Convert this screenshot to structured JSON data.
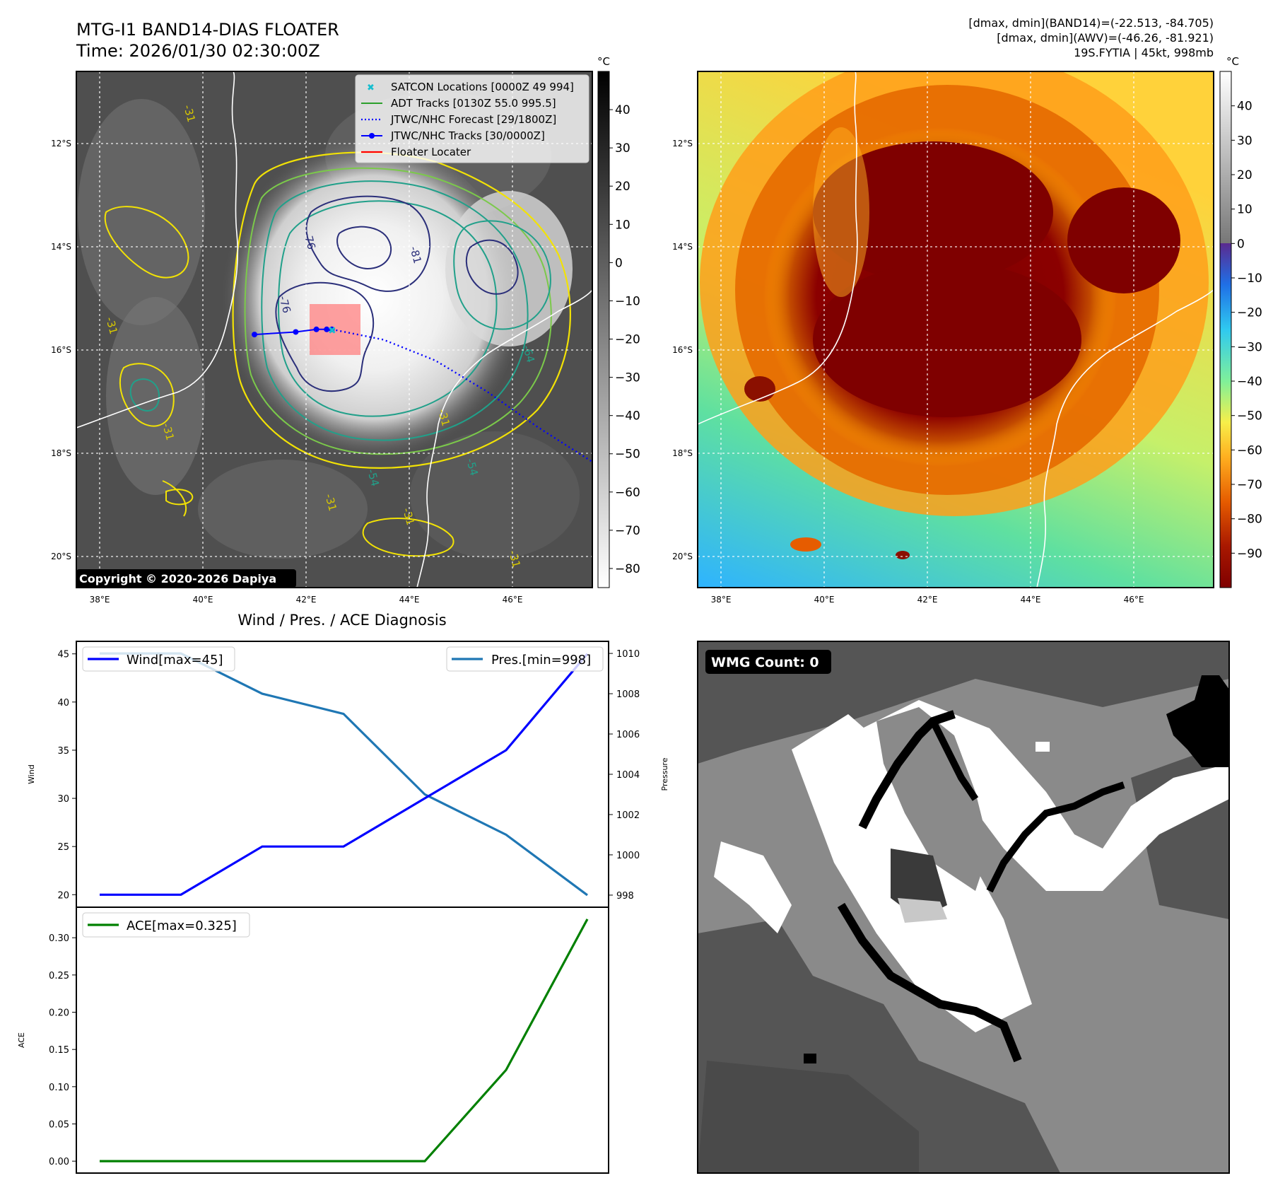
{
  "header": {
    "title_line1": "MTG-I1 BAND14-DIAS FLOATER",
    "title_line2": "Time: 2026/01/30 02:30:00Z",
    "right_line1": "[dmax, dmin](BAND14)=(-22.513, -84.705)",
    "right_line2": "[dmax, dmin](AWV)=(-46.26, -81.921)",
    "right_line3": "19S.FYTIA | 45kt, 998mb"
  },
  "map": {
    "lon_labels": [
      "38°E",
      "40°E",
      "42°E",
      "44°E",
      "46°E"
    ],
    "lat_labels": [
      "12°S",
      "14°S",
      "16°S",
      "18°S",
      "20°S"
    ],
    "copyright": "Copyright © 2020-2026 Dapiya",
    "legend": [
      {
        "label": "SATCON Locations [0000Z 49 994]",
        "color": "#17becf"
      },
      {
        "label": "ADT Tracks [0130Z 55.0 995.5]",
        "color": "#2ca02c"
      },
      {
        "label": "JTWC/NHC Forecast [29/1800Z]",
        "color": "#0000ff"
      },
      {
        "label": "JTWC/NHC Tracks [30/0000Z]",
        "color": "#0000ff"
      },
      {
        "label": "Floater Locater",
        "color": "#ff0000"
      }
    ],
    "contour_labels": [
      "-31",
      "-31",
      "-31",
      "-31",
      "-31",
      "-31",
      "-31",
      "-76",
      "-76",
      "-81",
      "-54",
      "-54",
      "-64"
    ],
    "jtwc_track": {
      "lon": [
        41.0,
        41.8,
        42.2,
        42.4,
        42.5
      ],
      "lat": [
        -15.7,
        -15.65,
        -15.6,
        -15.6,
        -15.6
      ]
    },
    "jtwc_forecast": {
      "lon": [
        42.5,
        43.5,
        44.5,
        45.5,
        46.5,
        47.6
      ],
      "lat": [
        -15.6,
        -15.8,
        -16.2,
        -16.8,
        -17.5,
        -18.2
      ]
    }
  },
  "colorbar_bt": {
    "unit": "°C",
    "ticks": [
      "40",
      "30",
      "20",
      "10",
      "0",
      "−10",
      "−20",
      "−30",
      "−40",
      "−50",
      "−60",
      "−70",
      "−80"
    ],
    "range": [
      -85,
      50
    ]
  },
  "colorbar_awv": {
    "unit": "°C",
    "ticks": [
      "40",
      "30",
      "20",
      "10",
      "0",
      "−10",
      "−20",
      "−30",
      "−40",
      "−50",
      "−60",
      "−70",
      "−80",
      "−90"
    ],
    "range": [
      -100,
      50
    ]
  },
  "diagnosis_title": "Wind / Pres. / ACE Diagnosis",
  "wmg_label": "WMG Count: 0",
  "chart_data": [
    {
      "type": "line",
      "title": "Wind / Pres. / ACE Diagnosis",
      "x": [
        0,
        1,
        2,
        3,
        4,
        5,
        6
      ],
      "series": [
        {
          "name": "Wind[max=45]",
          "axis": "left",
          "color": "#0000ff",
          "values": [
            20,
            20,
            25,
            25,
            30,
            35,
            45
          ]
        },
        {
          "name": "Pres.[min=998]",
          "axis": "right",
          "color": "#1f77b4",
          "values": [
            1010,
            1010,
            1008,
            1007,
            1003,
            1001,
            998
          ]
        }
      ],
      "ylabel": "Wind",
      "ylabel_right": "Pressure",
      "ylim": [
        18.7,
        46.3
      ],
      "ylim_right": [
        997.4,
        1010.6
      ],
      "yticks": [
        "20",
        "25",
        "30",
        "35",
        "40",
        "45"
      ],
      "yticks_right": [
        "998",
        "1000",
        "1002",
        "1004",
        "1006",
        "1008",
        "1010"
      ],
      "legend_left": "Wind[max=45]",
      "legend_right": "Pres.[min=998]"
    },
    {
      "type": "line",
      "x": [
        0,
        1,
        2,
        3,
        4,
        5,
        6
      ],
      "series": [
        {
          "name": "ACE[max=0.325]",
          "color": "#008000",
          "values": [
            0,
            0,
            0,
            0,
            0,
            0.1225,
            0.325
          ]
        }
      ],
      "ylabel": "ACE",
      "ylim": [
        -0.016,
        0.341
      ],
      "yticks": [
        "0.00",
        "0.05",
        "0.10",
        "0.15",
        "0.20",
        "0.25",
        "0.30"
      ],
      "legend": "ACE[max=0.325]"
    }
  ]
}
